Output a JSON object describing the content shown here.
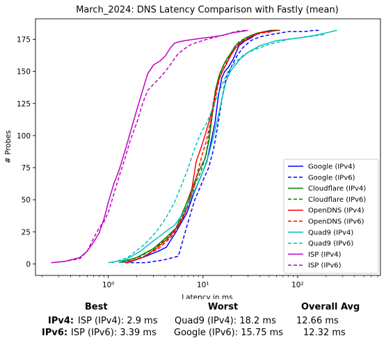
{
  "chart_data": {
    "type": "line",
    "title": "March_2024: DNS Latency Comparison with Fastly (mean)",
    "xlabel": "Latency in ms",
    "ylabel": "# Probes",
    "xscale": "log",
    "xlim": [
      0.17,
      750
    ],
    "ylim": [
      -9,
      191
    ],
    "xticks": [
      1,
      10,
      100
    ],
    "xtick_labels": [
      "10⁰",
      "10¹",
      "10²"
    ],
    "yticks": [
      0,
      25,
      50,
      75,
      100,
      125,
      150,
      175
    ],
    "grid": false,
    "legend_position": "lower-right",
    "series": [
      {
        "name": "Google (IPv4)",
        "color": "#0000ff",
        "dash": "solid",
        "x": [
          1.6,
          2.3,
          3.4,
          4.1,
          5.2,
          6.8,
          8.0,
          9.5,
          11.0,
          12.0,
          13.4,
          14.5,
          15.8,
          17.0,
          18.5,
          21.0,
          24.0,
          28.0,
          32.0,
          35.0,
          40.0,
          45.0,
          52.0,
          58.0,
          65.0
        ],
        "y": [
          1,
          5,
          10,
          13,
          25,
          40,
          55,
          68,
          80,
          93,
          110,
          130,
          145,
          150,
          153,
          160,
          170,
          174,
          176,
          178,
          180,
          181,
          182,
          182,
          182
        ]
      },
      {
        "name": "Google (IPv6)",
        "color": "#0000ff",
        "dash": "dashed",
        "x": [
          1.5,
          2.5,
          3.8,
          5.5,
          6.8,
          8.2,
          10.0,
          11.5,
          13.0,
          14.5,
          16.0,
          17.5,
          19.5,
          22.0,
          26.0,
          32.0,
          40.0,
          55.0,
          80.0,
          120.0,
          150.0,
          170.0
        ],
        "y": [
          1,
          1,
          3,
          6,
          30,
          50,
          65,
          75,
          90,
          110,
          130,
          145,
          152,
          160,
          168,
          174,
          177,
          179,
          181,
          181,
          182,
          182
        ]
      },
      {
        "name": "Cloudflare (IPv4)",
        "color": "#008000",
        "dash": "solid",
        "x": [
          1.3,
          2.0,
          3.0,
          4.0,
          5.2,
          6.5,
          7.8,
          9.0,
          10.5,
          11.5,
          12.5,
          13.5,
          15.0,
          16.5,
          18.0,
          20.0,
          22.0,
          25.0,
          28.0,
          32.0,
          38.0,
          45.0,
          55.0,
          65.0
        ],
        "y": [
          1,
          5,
          12,
          20,
          28,
          45,
          60,
          72,
          82,
          95,
          115,
          135,
          148,
          155,
          160,
          165,
          170,
          173,
          176,
          178,
          180,
          181,
          182,
          182
        ]
      },
      {
        "name": "Cloudflare (IPv6)",
        "color": "#008000",
        "dash": "dashed",
        "x": [
          1.4,
          2.2,
          3.2,
          4.2,
          5.5,
          6.8,
          8.0,
          9.5,
          10.8,
          11.8,
          12.8,
          14.0,
          15.5,
          17.0,
          19.0,
          21.0,
          24.0,
          28.0,
          34.0,
          42.0,
          50.0
        ],
        "y": [
          1,
          6,
          13,
          20,
          30,
          45,
          60,
          72,
          85,
          105,
          125,
          140,
          150,
          157,
          162,
          168,
          173,
          176,
          178,
          180,
          181
        ]
      },
      {
        "name": "OpenDNS (IPv4)",
        "color": "#ff0000",
        "dash": "solid",
        "x": [
          1.5,
          2.3,
          3.2,
          4.3,
          5.5,
          6.5,
          7.5,
          8.5,
          9.5,
          10.5,
          11.5,
          12.5,
          13.5,
          14.5,
          16.0,
          17.5,
          19.5,
          22.0,
          26.0,
          32.0,
          40.0,
          50.0,
          62.0
        ],
        "y": [
          1,
          5,
          12,
          20,
          30,
          40,
          55,
          80,
          90,
          100,
          110,
          120,
          132,
          142,
          150,
          155,
          162,
          168,
          173,
          177,
          180,
          181,
          182
        ]
      },
      {
        "name": "OpenDNS (IPv6)",
        "color": "#ff0000",
        "dash": "dashed",
        "x": [
          1.6,
          2.4,
          3.4,
          4.5,
          5.6,
          6.7,
          7.8,
          8.8,
          9.8,
          10.8,
          12.0,
          13.0,
          14.0,
          15.0,
          16.5,
          18.0,
          20.0,
          23.0,
          27.0,
          33.0,
          42.0,
          55.0
        ],
        "y": [
          1,
          6,
          12,
          20,
          30,
          42,
          55,
          72,
          85,
          95,
          110,
          122,
          135,
          145,
          152,
          158,
          164,
          170,
          174,
          178,
          180,
          181
        ]
      },
      {
        "name": "Quad9 (IPv4)",
        "color": "#00bfbf",
        "dash": "solid",
        "x": [
          1.0,
          1.5,
          2.2,
          3.0,
          4.0,
          5.0,
          6.0,
          7.0,
          8.5,
          10.0,
          11.5,
          13.0,
          14.5,
          16.0,
          17.5,
          19.5,
          22.0,
          25.0,
          30.0,
          40.0,
          60.0,
          100.0,
          150.0,
          200.0,
          260.0
        ],
        "y": [
          1,
          3,
          10,
          18,
          25,
          30,
          38,
          47,
          60,
          72,
          85,
          100,
          115,
          130,
          142,
          150,
          155,
          160,
          165,
          170,
          174,
          176,
          178,
          180,
          182
        ]
      },
      {
        "name": "Quad9 (IPv6)",
        "color": "#00bfbf",
        "dash": "dashed",
        "x": [
          1.1,
          1.6,
          2.4,
          3.2,
          4.0,
          5.0,
          6.0,
          7.0,
          8.0,
          9.0,
          10.0,
          11.0,
          12.5,
          14.0,
          16.0,
          18.5,
          22.0,
          27.0,
          35.0,
          50.0,
          80.0,
          130.0,
          200.0
        ],
        "y": [
          1,
          5,
          15,
          25,
          35,
          48,
          62,
          75,
          88,
          98,
          105,
          110,
          120,
          130,
          140,
          150,
          157,
          163,
          167,
          171,
          175,
          177,
          179
        ]
      },
      {
        "name": "ISP (IPv4)",
        "color": "#bf00bf",
        "dash": "solid",
        "x": [
          0.25,
          0.35,
          0.5,
          0.6,
          0.7,
          0.8,
          0.9,
          1.0,
          1.15,
          1.3,
          1.5,
          1.7,
          2.0,
          2.3,
          2.6,
          3.0,
          3.5,
          4.0,
          4.5,
          5.0,
          5.5,
          6.5,
          8.0,
          10.0,
          13.0,
          16.0,
          20.0,
          25.0,
          30.0
        ],
        "y": [
          1,
          2,
          5,
          10,
          17,
          24,
          35,
          48,
          63,
          73,
          88,
          102,
          120,
          135,
          148,
          155,
          158,
          162,
          168,
          172,
          173,
          174,
          175,
          176,
          177,
          178,
          180,
          181,
          182
        ]
      },
      {
        "name": "ISP (IPv6)",
        "color": "#bf00bf",
        "dash": "dashed",
        "x": [
          0.25,
          0.35,
          0.5,
          0.6,
          0.7,
          0.8,
          0.9,
          1.0,
          1.15,
          1.3,
          1.5,
          1.7,
          2.0,
          2.3,
          2.6,
          3.0,
          3.5,
          4.0,
          4.5,
          5.0,
          5.5,
          6.5,
          7.5,
          9.0,
          11.0,
          14.0,
          18.0,
          22.0,
          28.0
        ],
        "y": [
          1,
          2,
          4,
          10,
          20,
          28,
          33,
          40,
          55,
          68,
          82,
          96,
          110,
          125,
          135,
          140,
          145,
          150,
          155,
          160,
          164,
          168,
          171,
          173,
          175,
          177,
          179,
          181,
          182
        ]
      }
    ]
  },
  "summary": {
    "headers": {
      "best": "Best",
      "worst": "Worst",
      "avg": "Overall Avg"
    },
    "rows": [
      {
        "label": "IPv4:",
        "best": "ISP (IPv4): 2.9 ms",
        "worst": "Quad9 (IPv4): 18.2 ms",
        "avg": "12.66 ms"
      },
      {
        "label": "IPv6:",
        "best": "ISP (IPv6): 3.39 ms",
        "worst": "Google (IPv6): 15.75 ms",
        "avg": "12.32 ms"
      }
    ]
  }
}
